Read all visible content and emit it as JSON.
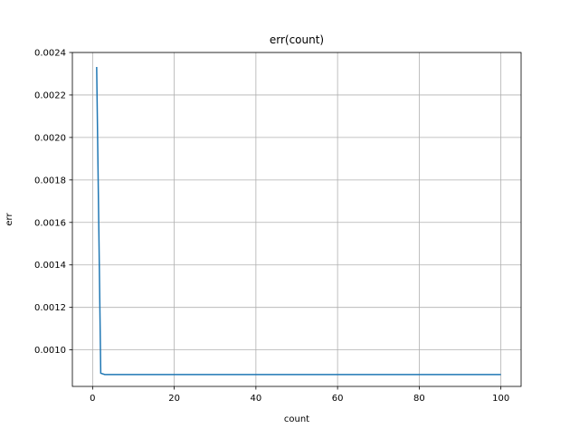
{
  "chart_data": {
    "type": "line",
    "title": "err(count)",
    "xlabel": "count",
    "ylabel": "err",
    "xlim": [
      -4.95,
      104.95
    ],
    "ylim": [
      0.000828,
      0.0024
    ],
    "grid": true,
    "x_ticks": [
      0,
      20,
      40,
      60,
      80,
      100
    ],
    "x_tick_labels": [
      "0",
      "20",
      "40",
      "60",
      "80",
      "100"
    ],
    "y_ticks": [
      0.001,
      0.0012,
      0.0014,
      0.0016,
      0.0018,
      0.002,
      0.0022,
      0.0024
    ],
    "y_tick_labels": [
      "0.0010",
      "0.0012",
      "0.0014",
      "0.0016",
      "0.0018",
      "0.0020",
      "0.0022",
      "0.0024"
    ],
    "series": [
      {
        "color": "#1f77b4",
        "x": [
          1,
          2,
          3,
          4,
          5,
          10,
          20,
          40,
          60,
          80,
          100
        ],
        "y": [
          0.002332,
          0.00089,
          0.000884,
          0.000884,
          0.000884,
          0.000884,
          0.000884,
          0.000884,
          0.000884,
          0.000884,
          0.000884
        ]
      }
    ]
  }
}
